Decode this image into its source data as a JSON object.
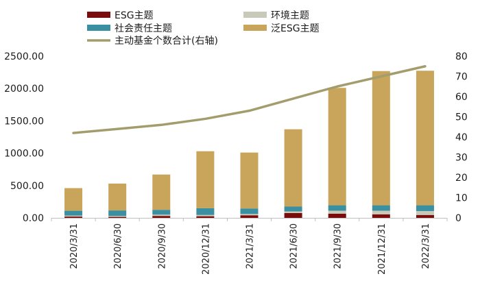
{
  "chart_data": {
    "type": "bar",
    "stacked": true,
    "categories": [
      "2020/3/31",
      "2020/6/30",
      "2020/9/30",
      "2020/12/31",
      "2021/3/31",
      "2021/6/30",
      "2021/9/30",
      "2021/12/31",
      "2022/3/31"
    ],
    "series": [
      {
        "name": "ESG主题",
        "color": "#7a0c0c",
        "axis": "left",
        "values": [
          20,
          15,
          30,
          25,
          40,
          75,
          65,
          55,
          45
        ]
      },
      {
        "name": "环境主题",
        "color": "#c8c9b8",
        "axis": "left",
        "values": [
          15,
          15,
          20,
          20,
          20,
          25,
          45,
          55,
          60
        ]
      },
      {
        "name": "社会责任主题",
        "color": "#3a8fa0",
        "axis": "left",
        "values": [
          75,
          85,
          75,
          105,
          85,
          75,
          85,
          85,
          90
        ]
      },
      {
        "name": "泛ESG主题",
        "color": "#c8a55a",
        "axis": "left",
        "values": [
          350,
          415,
          545,
          880,
          865,
          1195,
          1815,
          2075,
          2080
        ]
      },
      {
        "name": "主动基金个数合计(右轴)",
        "color": "#a39d6d",
        "type": "line",
        "axis": "right",
        "values": [
          42,
          44,
          46,
          49,
          53,
          59,
          65,
          70,
          75
        ]
      }
    ],
    "y_left": {
      "min": 0,
      "max": 2500,
      "ticks": [
        "0.00",
        "500.00",
        "1000.00",
        "1500.00",
        "2000.00",
        "2500.00"
      ]
    },
    "y_right": {
      "min": 0,
      "max": 80,
      "ticks": [
        "0",
        "10",
        "20",
        "30",
        "40",
        "50",
        "60",
        "70",
        "80"
      ]
    },
    "legend": {
      "position": "top"
    },
    "grid": false
  }
}
